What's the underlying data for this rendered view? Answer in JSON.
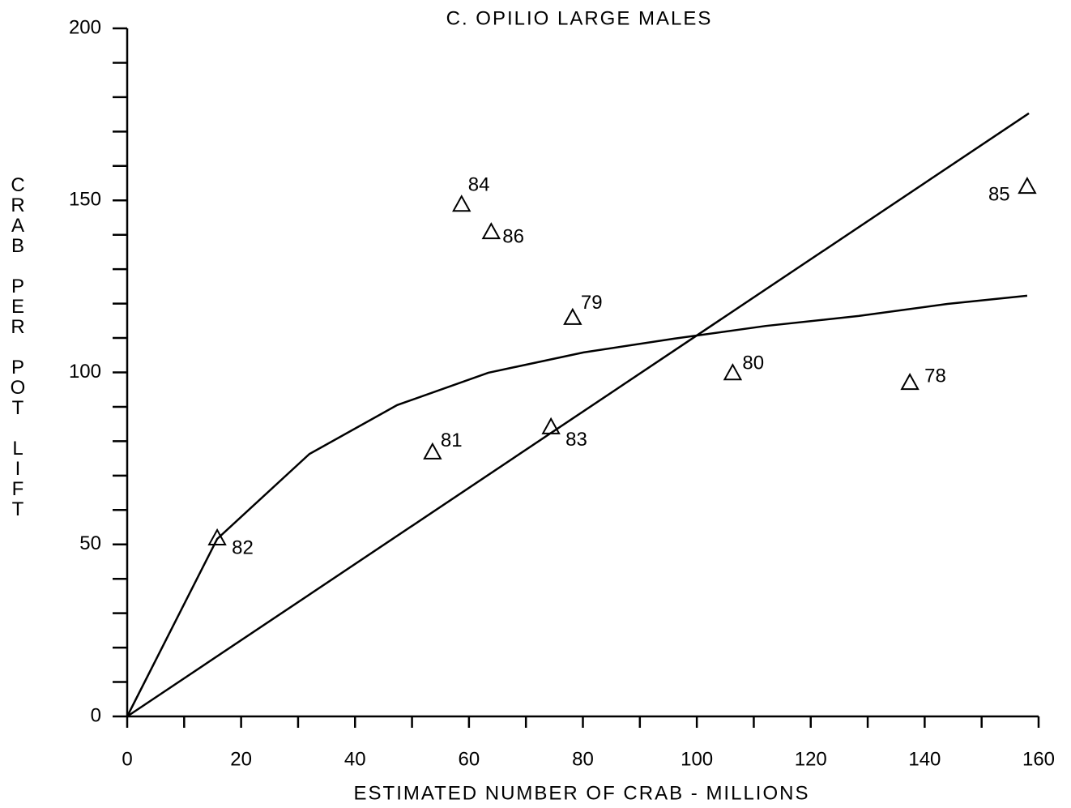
{
  "chart_data": {
    "type": "scatter",
    "title": "C. OPILIO LARGE MALES",
    "x_label": "ESTIMATED NUMBER OF CRAB - MILLIONS",
    "y_label": "CRAB PER POT LIFT",
    "xlim": [
      0,
      160
    ],
    "ylim": [
      0,
      200
    ],
    "xticks": [
      0,
      20,
      40,
      60,
      80,
      100,
      120,
      140,
      160
    ],
    "yticks": [
      0,
      50,
      100,
      150,
      200
    ],
    "xminorticks": [
      10,
      30,
      50,
      70,
      90,
      110,
      130,
      150
    ],
    "yminorticks": [
      10,
      20,
      30,
      40,
      60,
      70,
      80,
      90,
      110,
      120,
      130,
      140,
      160,
      170,
      180,
      190
    ],
    "color": "#000000",
    "series": [
      {
        "type": "scatter",
        "x": [
          15.8,
          58.7,
          63.9,
          78.2,
          53.6,
          74.4,
          106.3,
          137.4,
          158.0
        ],
        "values": [
          51.6,
          148.6,
          140.6,
          115.7,
          76.6,
          83.9,
          99.6,
          96.8,
          153.8
        ],
        "labels": [
          "82",
          "84",
          "86",
          "79",
          "81",
          "83",
          "80",
          "78",
          "85"
        ]
      },
      {
        "type": "line",
        "x": [
          0,
          158.3
        ],
        "values": [
          0,
          175.3
        ]
      },
      {
        "type": "line",
        "x": [
          0,
          15.8,
          32,
          47.4,
          63.4,
          80.1,
          96,
          112.1,
          128.4,
          144,
          158
        ],
        "values": [
          0,
          51.6,
          76.3,
          90.5,
          99.9,
          105.8,
          109.8,
          113.5,
          116.4,
          119.9,
          122.3
        ]
      }
    ]
  }
}
